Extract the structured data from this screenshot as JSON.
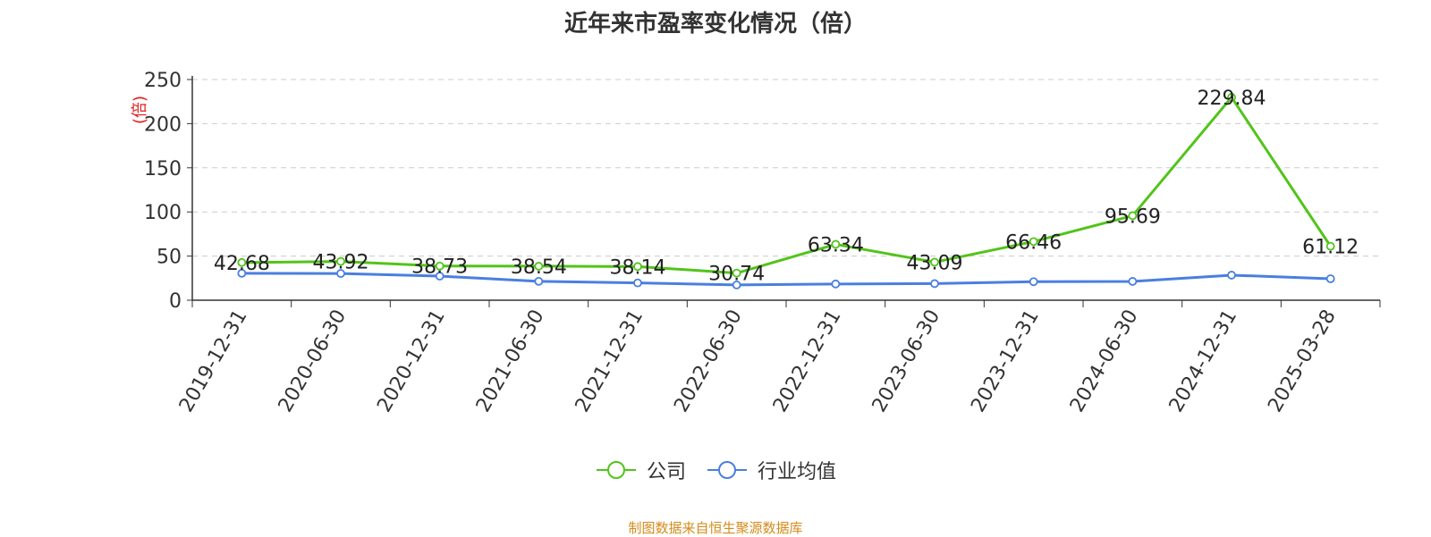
{
  "chart_data": {
    "type": "line",
    "title": "近年来市盈率变化情况（倍）",
    "ylabel": "(倍)",
    "xlabel": "",
    "ylim": [
      0,
      250
    ],
    "yticks": [
      0,
      50,
      100,
      150,
      200,
      250
    ],
    "grid": true,
    "legend_position": "bottom-center",
    "categories": [
      "2019-12-31",
      "2020-06-30",
      "2020-12-31",
      "2021-06-30",
      "2021-12-31",
      "2022-06-30",
      "2022-12-31",
      "2023-06-30",
      "2023-12-31",
      "2024-06-30",
      "2024-12-31",
      "2025-03-28"
    ],
    "series": [
      {
        "name": "公司",
        "color": "#52c41a",
        "values": [
          42.68,
          43.92,
          38.73,
          38.54,
          38.14,
          30.74,
          63.34,
          43.09,
          66.46,
          95.69,
          229.84,
          61.12
        ],
        "labels": [
          "42.68",
          "43.92",
          "38.73",
          "38.54",
          "38.14",
          "30.74",
          "63.34",
          "43.09",
          "66.46",
          "95.69",
          "229.84",
          "61.12"
        ]
      },
      {
        "name": "行业均值",
        "color": "#4a7fe0",
        "values": [
          30.5,
          30.3,
          27.3,
          21.4,
          19.6,
          17.3,
          18.4,
          18.8,
          21.0,
          21.3,
          28.4,
          24.3
        ]
      }
    ]
  },
  "source_text": "制图数据来自恒生聚源数据库"
}
